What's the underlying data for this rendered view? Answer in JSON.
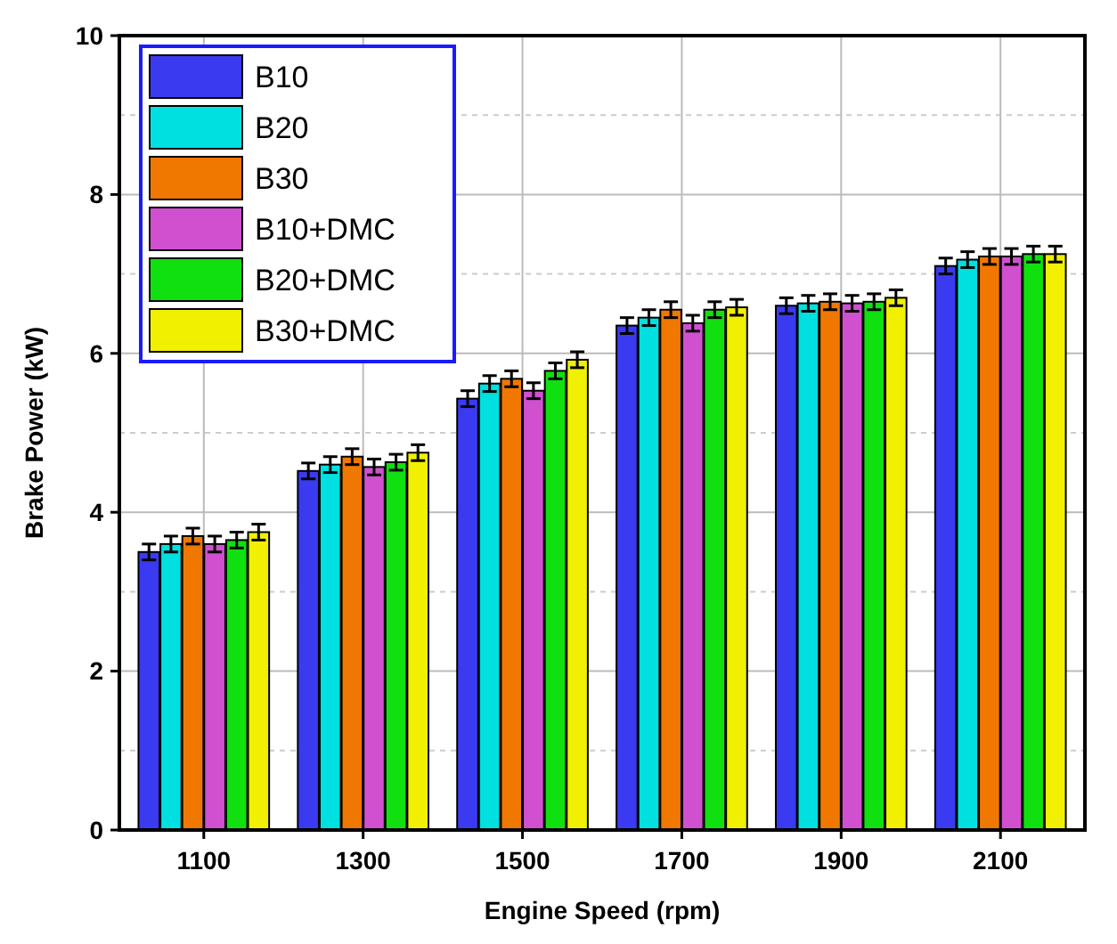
{
  "chart_data": {
    "type": "bar",
    "xlabel": "Engine Speed (rpm)",
    "ylabel": "Brake Power (kW)",
    "categories": [
      "1100",
      "1300",
      "1500",
      "1700",
      "1900",
      "2100"
    ],
    "ylim": [
      0,
      10
    ],
    "yticks": [
      0,
      2,
      4,
      6,
      8,
      10
    ],
    "grid": true,
    "legend": "top left",
    "series": [
      {
        "name": "B10",
        "color": "#3a3af0",
        "values": [
          3.5,
          4.52,
          5.43,
          6.35,
          6.6,
          7.1
        ],
        "errors": [
          0.1,
          0.1,
          0.1,
          0.1,
          0.1,
          0.1
        ]
      },
      {
        "name": "B20",
        "color": "#00e0e0",
        "values": [
          3.6,
          4.6,
          5.62,
          6.45,
          6.63,
          7.18
        ],
        "errors": [
          0.1,
          0.1,
          0.1,
          0.1,
          0.1,
          0.1
        ]
      },
      {
        "name": "B30",
        "color": "#f07800",
        "values": [
          3.7,
          4.7,
          5.68,
          6.55,
          6.65,
          7.22
        ],
        "errors": [
          0.1,
          0.1,
          0.1,
          0.1,
          0.1,
          0.1
        ]
      },
      {
        "name": "B10+DMC",
        "color": "#d050d0",
        "values": [
          3.6,
          4.57,
          5.53,
          6.38,
          6.63,
          7.22
        ],
        "errors": [
          0.1,
          0.1,
          0.1,
          0.1,
          0.1,
          0.1
        ]
      },
      {
        "name": "B20+DMC",
        "color": "#10e010",
        "values": [
          3.65,
          4.63,
          5.78,
          6.55,
          6.65,
          7.25
        ],
        "errors": [
          0.1,
          0.1,
          0.1,
          0.1,
          0.1,
          0.1
        ]
      },
      {
        "name": "B30+DMC",
        "color": "#f0f000",
        "values": [
          3.75,
          4.75,
          5.92,
          6.58,
          6.7,
          7.25
        ],
        "errors": [
          0.1,
          0.1,
          0.1,
          0.1,
          0.1,
          0.1
        ]
      }
    ]
  }
}
